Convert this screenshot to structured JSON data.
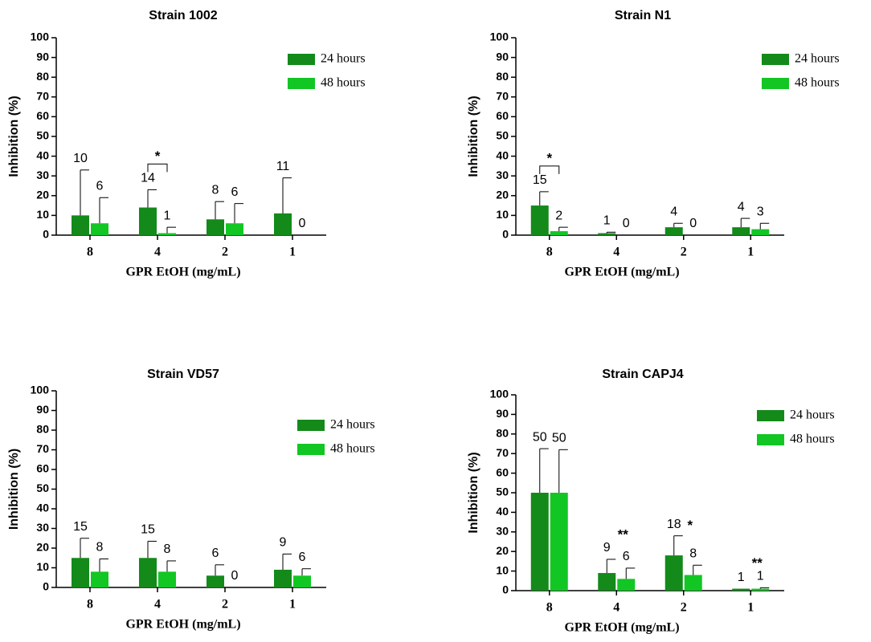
{
  "chart_data": [
    {
      "type": "bar",
      "title": "Strain 1002",
      "xlabel": "GPR EtOH (mg/mL)",
      "ylabel": "Inhibition (%)",
      "ylim": [
        0,
        100
      ],
      "yticks": [
        0,
        10,
        20,
        30,
        40,
        50,
        60,
        70,
        80,
        90,
        100
      ],
      "categories": [
        "8",
        "4",
        "2",
        "1"
      ],
      "series": [
        {
          "name": "24 hours",
          "color": "#138A1A",
          "values": [
            10,
            14,
            8,
            11
          ],
          "errors": [
            23,
            9,
            9,
            18
          ],
          "labels": [
            "10",
            "14",
            "8",
            "11"
          ]
        },
        {
          "name": "48 hours",
          "color": "#12C624",
          "values": [
            6,
            1,
            6,
            0
          ],
          "errors": [
            13,
            3,
            10,
            0
          ],
          "labels": [
            "6",
            "1",
            "6",
            "0"
          ]
        }
      ],
      "annotations": [
        {
          "text": "*",
          "category": "4",
          "bracket": true
        }
      ],
      "legend_position": "top-right"
    },
    {
      "type": "bar",
      "title": "Strain N1",
      "xlabel": "GPR EtOH (mg/mL)",
      "ylabel": "Inhibition (%)",
      "ylim": [
        0,
        100
      ],
      "yticks": [
        0,
        10,
        20,
        30,
        40,
        50,
        60,
        70,
        80,
        90,
        100
      ],
      "categories": [
        "8",
        "4",
        "2",
        "1"
      ],
      "series": [
        {
          "name": "24 hours",
          "color": "#138A1A",
          "values": [
            15,
            1,
            4,
            4
          ],
          "errors": [
            7,
            0.5,
            2,
            4.5
          ],
          "labels": [
            "15",
            "1",
            "4",
            "4"
          ]
        },
        {
          "name": "48 hours",
          "color": "#12C624",
          "values": [
            2,
            0,
            0,
            3
          ],
          "errors": [
            2,
            0,
            0,
            3
          ],
          "labels": [
            "2",
            "0",
            "0",
            "3"
          ]
        }
      ],
      "annotations": [
        {
          "text": "*",
          "category": "8",
          "bracket": true
        }
      ],
      "legend_position": "top-right"
    },
    {
      "type": "bar",
      "title": "Strain VD57",
      "xlabel": "GPR EtOH (mg/mL)",
      "ylabel": "Inhibition (%)",
      "ylim": [
        0,
        100
      ],
      "yticks": [
        0,
        10,
        20,
        30,
        40,
        50,
        60,
        70,
        80,
        90,
        100
      ],
      "categories": [
        "8",
        "4",
        "2",
        "1"
      ],
      "series": [
        {
          "name": "24 hours",
          "color": "#138A1A",
          "values": [
            15,
            15,
            6,
            9
          ],
          "errors": [
            10,
            8.5,
            5.5,
            8
          ],
          "labels": [
            "15",
            "15",
            "6",
            "9"
          ]
        },
        {
          "name": "48 hours",
          "color": "#12C624",
          "values": [
            8,
            8,
            0,
            6
          ],
          "errors": [
            6.5,
            5.5,
            0,
            3.5
          ],
          "labels": [
            "8",
            "8",
            "0",
            "6"
          ]
        }
      ],
      "annotations": [],
      "legend_position": "top-right"
    },
    {
      "type": "bar",
      "title": "Strain CAPJ4",
      "xlabel": "GPR EtOH (mg/mL)",
      "ylabel": "Inhibition (%)",
      "ylim": [
        0,
        100
      ],
      "yticks": [
        0,
        10,
        20,
        30,
        40,
        50,
        60,
        70,
        80,
        90,
        100
      ],
      "categories": [
        "8",
        "4",
        "2",
        "1"
      ],
      "series": [
        {
          "name": "24 hours",
          "color": "#138A1A",
          "values": [
            50,
            9,
            18,
            1
          ],
          "errors": [
            22.5,
            7,
            10,
            0
          ],
          "labels": [
            "50",
            "9",
            "18",
            "1"
          ]
        },
        {
          "name": "48 hours",
          "color": "#12C624",
          "values": [
            50,
            6,
            8,
            1
          ],
          "errors": [
            22,
            5.5,
            5,
            0.5
          ],
          "labels": [
            "50",
            "6",
            "8",
            "1"
          ]
        }
      ],
      "annotations": [
        {
          "text": "**",
          "category": "4",
          "bracket": false
        },
        {
          "text": "*",
          "category": "2",
          "bracket": false
        },
        {
          "text": "**",
          "category": "1",
          "bracket": false
        }
      ],
      "legend_position": "top-right"
    }
  ]
}
